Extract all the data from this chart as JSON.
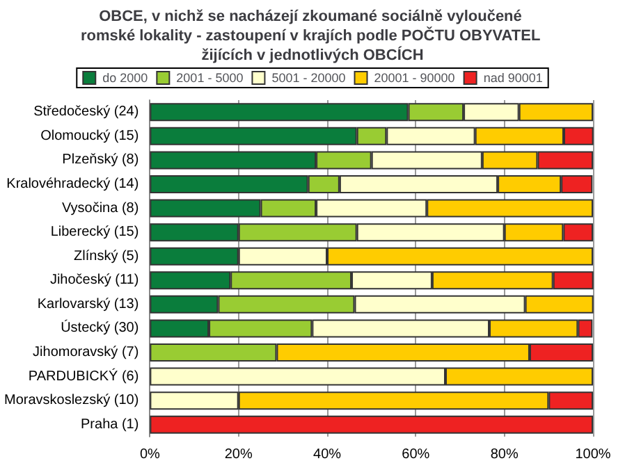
{
  "chart_data": {
    "type": "bar",
    "orientation": "horizontal",
    "stacked": true,
    "title": "OBCE, v nichž se nacházejí zkoumané sociálně vyloučené romské lokality - zastoupení v krajích podle POČTU OBYVATEL žijících v jednotlivých OBCÍCH",
    "categories": [
      "Středočeský (24)",
      "Olomoucký (15)",
      "Plzeňský (8)",
      "Kralovéhradecký (14)",
      "Vysočina (8)",
      "Liberecký (15)",
      "Zlínský (5)",
      "Jihočeský (11)",
      "Karlovarský (13)",
      "Ústecký (30)",
      "Jihomoravský (7)",
      "PARDUBICKÝ (6)",
      "Moravskoslezský (10)",
      "Praha (1)"
    ],
    "series": [
      {
        "name": "do 2000",
        "color": "#0a7d3c",
        "values": [
          58.3,
          46.7,
          37.5,
          35.7,
          25,
          20,
          20,
          18.2,
          15.4,
          13.3,
          0,
          0,
          0,
          0
        ]
      },
      {
        "name": "2001 - 5000",
        "color": "#99cc33",
        "values": [
          12.5,
          6.7,
          12.5,
          7.1,
          12.5,
          26.7,
          0,
          27.3,
          30.8,
          23.3,
          28.6,
          0,
          0,
          0
        ]
      },
      {
        "name": "5001 - 20000",
        "color": "#ffffcc",
        "values": [
          12.5,
          20,
          25,
          35.7,
          25,
          33.3,
          20,
          18.2,
          38.5,
          40,
          0,
          66.7,
          20,
          0
        ]
      },
      {
        "name": "20001 - 90000",
        "color": "#ffcc00",
        "values": [
          16.7,
          20,
          12.5,
          14.3,
          37.5,
          13.3,
          60,
          27.3,
          15.4,
          20,
          57.1,
          33.3,
          70,
          0
        ]
      },
      {
        "name": "nad 90001",
        "color": "#ee2222",
        "values": [
          0,
          6.7,
          12.5,
          7.1,
          0,
          6.7,
          0,
          9.1,
          0,
          3.3,
          14.3,
          0,
          10,
          100
        ]
      }
    ],
    "xlim": [
      0,
      100
    ],
    "xticks": [
      {
        "value": 0,
        "label": "0%"
      },
      {
        "value": 20,
        "label": "20%"
      },
      {
        "value": 40,
        "label": "40%"
      },
      {
        "value": 60,
        "label": "60%"
      },
      {
        "value": 80,
        "label": "80%"
      },
      {
        "value": 100,
        "label": "100%"
      }
    ],
    "grid": "x",
    "legend": "top"
  }
}
